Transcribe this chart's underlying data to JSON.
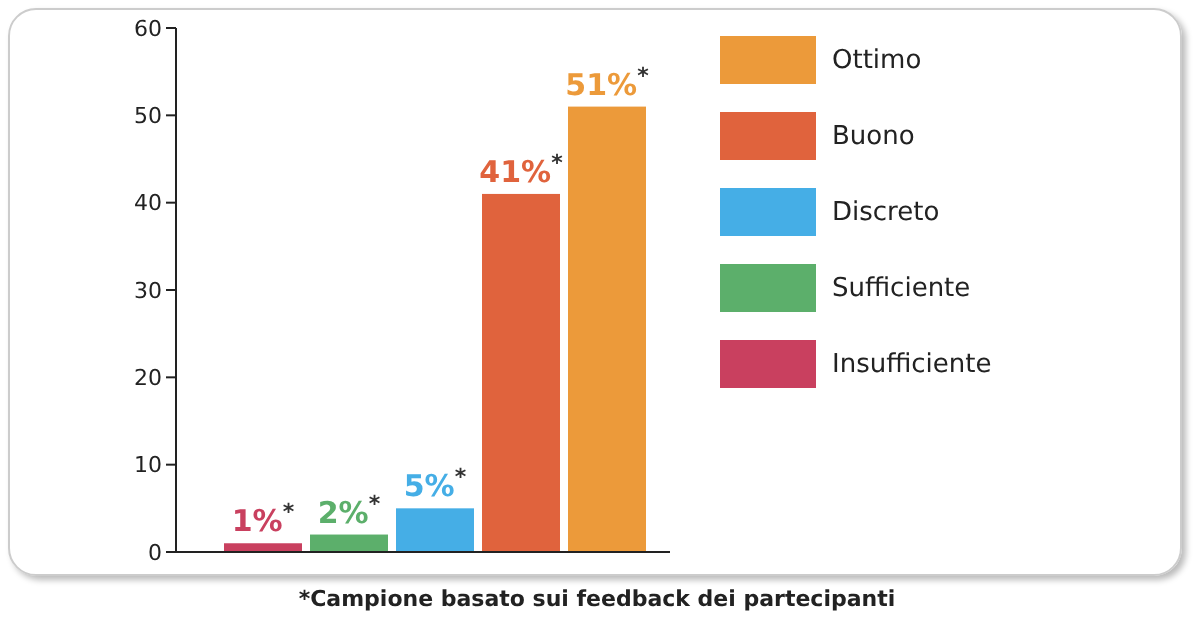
{
  "chart_data": {
    "type": "bar",
    "categories": [
      null,
      null,
      null,
      null,
      null
    ],
    "series": [
      {
        "name": "Ottimo",
        "color": "#ec9a3a",
        "values": [
          null,
          null,
          null,
          null,
          51
        ],
        "value_labels": [
          null,
          null,
          null,
          null,
          "51%$^{*}$"
        ]
      },
      {
        "name": "Buono",
        "color": "#e0633d",
        "values": [
          null,
          null,
          null,
          41,
          null
        ],
        "value_labels": [
          null,
          null,
          null,
          "41%$^{*}$",
          null
        ]
      },
      {
        "name": "Discreto",
        "color": "#45aee6",
        "values": [
          null,
          null,
          5,
          null,
          null
        ],
        "value_labels": [
          null,
          null,
          "5%$^{*}$",
          null,
          null
        ]
      },
      {
        "name": "Sufficiente",
        "color": "#5caf6b",
        "values": [
          null,
          2,
          null,
          null,
          null
        ],
        "value_labels": [
          null,
          "2%$^{*}$",
          null,
          null,
          null
        ]
      },
      {
        "name": "Insufficiente",
        "color": "#c9405f",
        "values": [
          1,
          null,
          null,
          null,
          null
        ],
        "value_labels": [
          "1%$^{*}$",
          null,
          null,
          null,
          null
        ]
      }
    ],
    "ylim": [
      0,
      60
    ],
    "yticks": [
      0,
      10,
      20,
      30,
      40,
      50,
      60
    ],
    "legend": "right",
    "annotations": [
      "*Campione basato sui feedback dei partecipanti"
    ]
  }
}
